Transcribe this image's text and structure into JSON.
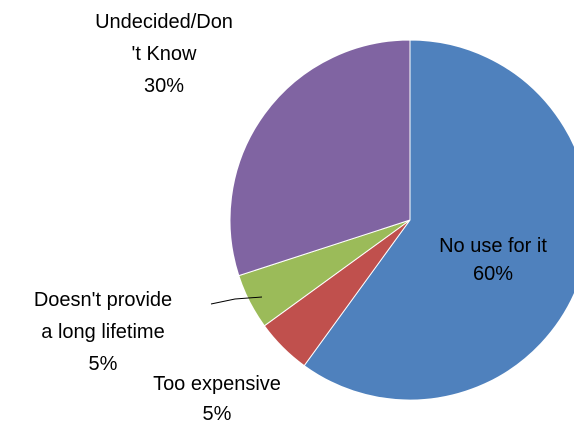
{
  "chart_data": {
    "type": "pie",
    "start_angle_deg": 0,
    "direction": "clockwise",
    "slices": [
      {
        "label_lines": [
          "No use for it"
        ],
        "value_label": "60%",
        "value": 60,
        "color": "#4F81BD"
      },
      {
        "label_lines": [
          "Too expensive"
        ],
        "value_label": "5%",
        "value": 5,
        "color": "#C0504D"
      },
      {
        "label_lines": [
          "Doesn't provide",
          "a long lifetime"
        ],
        "value_label": "5%",
        "value": 5,
        "color": "#9BBB59"
      },
      {
        "label_lines": [
          "Undecided/Don",
          "'t Know"
        ],
        "value_label": "30%",
        "value": 30,
        "color": "#8064A2"
      }
    ]
  }
}
